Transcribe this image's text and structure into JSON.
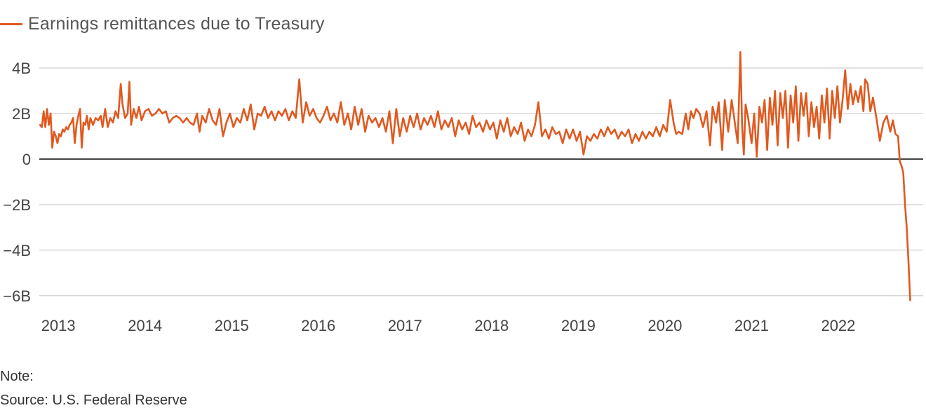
{
  "colors": {
    "series": "#e0591f",
    "grid": "#cfcfcf",
    "zero": "#111111"
  },
  "legend": {
    "label": "Earnings remittances due to Treasury"
  },
  "footer": {
    "note": "Note:",
    "source": "Source: U.S. Federal Reserve"
  },
  "chart_data": {
    "type": "line",
    "title": "",
    "xlabel": "",
    "ylabel": "",
    "ylim": [
      -6.5,
      4.8
    ],
    "xlim": [
      2012.78,
      2022.98
    ],
    "grid": true,
    "legend_position": "top-left",
    "yticks": [
      {
        "value": 4,
        "label": "4B"
      },
      {
        "value": 2,
        "label": "2B"
      },
      {
        "value": 0,
        "label": "0"
      },
      {
        "value": -2,
        "label": "−2B"
      },
      {
        "value": -4,
        "label": "−4B"
      },
      {
        "value": -6,
        "label": "−6B"
      }
    ],
    "xticks": [
      {
        "value": 2013,
        "label": "2013"
      },
      {
        "value": 2014,
        "label": "2014"
      },
      {
        "value": 2015,
        "label": "2015"
      },
      {
        "value": 2016,
        "label": "2016"
      },
      {
        "value": 2017,
        "label": "2017"
      },
      {
        "value": 2018,
        "label": "2018"
      },
      {
        "value": 2019,
        "label": "2019"
      },
      {
        "value": 2020,
        "label": "2020"
      },
      {
        "value": 2021,
        "label": "2021"
      },
      {
        "value": 2022,
        "label": "2022"
      }
    ],
    "series": [
      {
        "name": "Earnings remittances due to Treasury",
        "points": [
          [
            2012.79,
            1.5
          ],
          [
            2012.81,
            1.4
          ],
          [
            2012.83,
            2.1
          ],
          [
            2012.85,
            1.4
          ],
          [
            2012.87,
            2.2
          ],
          [
            2012.89,
            1.5
          ],
          [
            2012.91,
            2.0
          ],
          [
            2012.93,
            0.5
          ],
          [
            2012.95,
            1.2
          ],
          [
            2012.97,
            1.0
          ],
          [
            2012.99,
            0.7
          ],
          [
            2013.01,
            1.1
          ],
          [
            2013.03,
            1.0
          ],
          [
            2013.05,
            1.3
          ],
          [
            2013.07,
            1.2
          ],
          [
            2013.09,
            1.4
          ],
          [
            2013.11,
            1.3
          ],
          [
            2013.13,
            1.5
          ],
          [
            2013.15,
            1.6
          ],
          [
            2013.17,
            1.8
          ],
          [
            2013.19,
            0.7
          ],
          [
            2013.21,
            1.5
          ],
          [
            2013.23,
            1.9
          ],
          [
            2013.25,
            2.2
          ],
          [
            2013.27,
            0.5
          ],
          [
            2013.29,
            1.6
          ],
          [
            2013.31,
            1.5
          ],
          [
            2013.33,
            1.9
          ],
          [
            2013.35,
            1.3
          ],
          [
            2013.37,
            1.8
          ],
          [
            2013.4,
            1.5
          ],
          [
            2013.43,
            1.8
          ],
          [
            2013.46,
            1.7
          ],
          [
            2013.49,
            1.9
          ],
          [
            2013.51,
            1.4
          ],
          [
            2013.54,
            2.2
          ],
          [
            2013.57,
            1.4
          ],
          [
            2013.6,
            1.8
          ],
          [
            2013.63,
            1.6
          ],
          [
            2013.66,
            2.1
          ],
          [
            2013.69,
            1.8
          ],
          [
            2013.72,
            3.3
          ],
          [
            2013.74,
            2.4
          ],
          [
            2013.77,
            1.8
          ],
          [
            2013.8,
            2.0
          ],
          [
            2013.82,
            3.4
          ],
          [
            2013.84,
            1.5
          ],
          [
            2013.87,
            2.2
          ],
          [
            2013.9,
            1.8
          ],
          [
            2013.93,
            2.3
          ],
          [
            2013.96,
            1.7
          ],
          [
            2014.0,
            2.1
          ],
          [
            2014.04,
            2.2
          ],
          [
            2014.08,
            1.9
          ],
          [
            2014.12,
            2.0
          ],
          [
            2014.16,
            2.2
          ],
          [
            2014.2,
            2.0
          ],
          [
            2014.24,
            2.1
          ],
          [
            2014.28,
            1.6
          ],
          [
            2014.32,
            1.8
          ],
          [
            2014.36,
            1.9
          ],
          [
            2014.4,
            1.8
          ],
          [
            2014.44,
            1.6
          ],
          [
            2014.48,
            1.8
          ],
          [
            2014.52,
            1.6
          ],
          [
            2014.56,
            1.5
          ],
          [
            2014.6,
            2.0
          ],
          [
            2014.63,
            1.2
          ],
          [
            2014.66,
            1.9
          ],
          [
            2014.7,
            1.6
          ],
          [
            2014.74,
            2.2
          ],
          [
            2014.78,
            1.7
          ],
          [
            2014.82,
            1.5
          ],
          [
            2014.86,
            2.2
          ],
          [
            2014.9,
            1.0
          ],
          [
            2014.94,
            1.6
          ],
          [
            2014.98,
            2.0
          ],
          [
            2015.02,
            1.4
          ],
          [
            2015.06,
            1.8
          ],
          [
            2015.1,
            1.6
          ],
          [
            2015.14,
            2.2
          ],
          [
            2015.18,
            1.7
          ],
          [
            2015.22,
            2.4
          ],
          [
            2015.26,
            1.3
          ],
          [
            2015.3,
            2.0
          ],
          [
            2015.34,
            1.9
          ],
          [
            2015.38,
            2.3
          ],
          [
            2015.42,
            1.8
          ],
          [
            2015.46,
            2.1
          ],
          [
            2015.5,
            1.7
          ],
          [
            2015.54,
            2.1
          ],
          [
            2015.58,
            1.9
          ],
          [
            2015.62,
            2.2
          ],
          [
            2015.66,
            1.7
          ],
          [
            2015.7,
            2.1
          ],
          [
            2015.74,
            1.8
          ],
          [
            2015.78,
            3.5
          ],
          [
            2015.82,
            1.6
          ],
          [
            2015.86,
            2.5
          ],
          [
            2015.9,
            1.9
          ],
          [
            2015.94,
            2.2
          ],
          [
            2015.98,
            1.8
          ],
          [
            2016.02,
            1.6
          ],
          [
            2016.06,
            1.9
          ],
          [
            2016.1,
            2.3
          ],
          [
            2016.14,
            1.7
          ],
          [
            2016.18,
            2.0
          ],
          [
            2016.22,
            1.6
          ],
          [
            2016.26,
            2.5
          ],
          [
            2016.3,
            1.5
          ],
          [
            2016.34,
            2.0
          ],
          [
            2016.38,
            1.3
          ],
          [
            2016.42,
            2.3
          ],
          [
            2016.46,
            1.5
          ],
          [
            2016.5,
            2.2
          ],
          [
            2016.54,
            1.2
          ],
          [
            2016.58,
            1.9
          ],
          [
            2016.62,
            1.6
          ],
          [
            2016.66,
            1.8
          ],
          [
            2016.7,
            1.4
          ],
          [
            2016.74,
            1.8
          ],
          [
            2016.78,
            1.2
          ],
          [
            2016.82,
            2.1
          ],
          [
            2016.86,
            0.7
          ],
          [
            2016.9,
            2.2
          ],
          [
            2016.94,
            1.0
          ],
          [
            2016.98,
            1.8
          ],
          [
            2017.02,
            1.2
          ],
          [
            2017.06,
            1.9
          ],
          [
            2017.1,
            1.4
          ],
          [
            2017.14,
            2.0
          ],
          [
            2017.18,
            1.3
          ],
          [
            2017.22,
            1.8
          ],
          [
            2017.26,
            1.5
          ],
          [
            2017.3,
            1.9
          ],
          [
            2017.34,
            1.4
          ],
          [
            2017.38,
            2.1
          ],
          [
            2017.42,
            1.3
          ],
          [
            2017.46,
            1.7
          ],
          [
            2017.5,
            1.4
          ],
          [
            2017.54,
            1.8
          ],
          [
            2017.58,
            1.0
          ],
          [
            2017.62,
            1.7
          ],
          [
            2017.66,
            1.3
          ],
          [
            2017.7,
            1.6
          ],
          [
            2017.74,
            1.1
          ],
          [
            2017.78,
            1.9
          ],
          [
            2017.82,
            1.4
          ],
          [
            2017.86,
            1.6
          ],
          [
            2017.9,
            1.2
          ],
          [
            2017.94,
            1.7
          ],
          [
            2017.98,
            1.3
          ],
          [
            2018.02,
            1.6
          ],
          [
            2018.06,
            0.9
          ],
          [
            2018.1,
            1.7
          ],
          [
            2018.14,
            1.2
          ],
          [
            2018.18,
            1.8
          ],
          [
            2018.22,
            1.0
          ],
          [
            2018.26,
            1.4
          ],
          [
            2018.3,
            1.1
          ],
          [
            2018.34,
            1.6
          ],
          [
            2018.38,
            0.8
          ],
          [
            2018.42,
            1.3
          ],
          [
            2018.46,
            1.0
          ],
          [
            2018.5,
            1.5
          ],
          [
            2018.54,
            2.5
          ],
          [
            2018.58,
            1.0
          ],
          [
            2018.62,
            1.3
          ],
          [
            2018.66,
            0.9
          ],
          [
            2018.7,
            1.4
          ],
          [
            2018.74,
            1.1
          ],
          [
            2018.78,
            1.2
          ],
          [
            2018.82,
            0.7
          ],
          [
            2018.86,
            1.3
          ],
          [
            2018.9,
            0.9
          ],
          [
            2018.94,
            1.3
          ],
          [
            2018.98,
            0.8
          ],
          [
            2019.02,
            1.2
          ],
          [
            2019.06,
            0.2
          ],
          [
            2019.1,
            1.0
          ],
          [
            2019.14,
            0.8
          ],
          [
            2019.18,
            1.1
          ],
          [
            2019.22,
            0.9
          ],
          [
            2019.26,
            1.3
          ],
          [
            2019.3,
            1.0
          ],
          [
            2019.34,
            1.4
          ],
          [
            2019.38,
            1.1
          ],
          [
            2019.42,
            1.3
          ],
          [
            2019.46,
            0.9
          ],
          [
            2019.5,
            1.2
          ],
          [
            2019.54,
            1.0
          ],
          [
            2019.58,
            1.3
          ],
          [
            2019.62,
            0.7
          ],
          [
            2019.66,
            1.1
          ],
          [
            2019.7,
            0.8
          ],
          [
            2019.74,
            1.2
          ],
          [
            2019.78,
            0.9
          ],
          [
            2019.82,
            1.2
          ],
          [
            2019.86,
            1.0
          ],
          [
            2019.9,
            1.4
          ],
          [
            2019.94,
            1.0
          ],
          [
            2019.98,
            1.5
          ],
          [
            2020.02,
            1.2
          ],
          [
            2020.06,
            2.6
          ],
          [
            2020.1,
            1.6
          ],
          [
            2020.13,
            1.1
          ],
          [
            2020.16,
            1.2
          ],
          [
            2020.2,
            1.1
          ],
          [
            2020.24,
            2.0
          ],
          [
            2020.27,
            1.3
          ],
          [
            2020.3,
            2.1
          ],
          [
            2020.33,
            1.8
          ],
          [
            2020.36,
            2.2
          ],
          [
            2020.4,
            2.0
          ],
          [
            2020.44,
            1.4
          ],
          [
            2020.48,
            2.1
          ],
          [
            2020.52,
            0.6
          ],
          [
            2020.55,
            2.3
          ],
          [
            2020.59,
            1.6
          ],
          [
            2020.62,
            2.5
          ],
          [
            2020.66,
            0.4
          ],
          [
            2020.69,
            2.6
          ],
          [
            2020.73,
            1.2
          ],
          [
            2020.77,
            2.6
          ],
          [
            2020.81,
            1.5
          ],
          [
            2020.84,
            0.7
          ],
          [
            2020.87,
            4.7
          ],
          [
            2020.89,
            1.5
          ],
          [
            2020.91,
            0.2
          ],
          [
            2020.93,
            2.4
          ],
          [
            2020.96,
            1.8
          ],
          [
            2021.0,
            0.7
          ],
          [
            2021.03,
            2.0
          ],
          [
            2021.06,
            0.1
          ],
          [
            2021.09,
            2.3
          ],
          [
            2021.12,
            1.6
          ],
          [
            2021.15,
            2.6
          ],
          [
            2021.18,
            0.4
          ],
          [
            2021.21,
            2.7
          ],
          [
            2021.24,
            1.5
          ],
          [
            2021.27,
            3.0
          ],
          [
            2021.3,
            0.6
          ],
          [
            2021.33,
            2.9
          ],
          [
            2021.36,
            1.8
          ],
          [
            2021.39,
            3.0
          ],
          [
            2021.42,
            0.5
          ],
          [
            2021.45,
            2.8
          ],
          [
            2021.48,
            1.6
          ],
          [
            2021.51,
            3.2
          ],
          [
            2021.54,
            0.8
          ],
          [
            2021.57,
            2.9
          ],
          [
            2021.6,
            1.9
          ],
          [
            2021.63,
            2.9
          ],
          [
            2021.66,
            1.0
          ],
          [
            2021.69,
            2.5
          ],
          [
            2021.72,
            1.4
          ],
          [
            2021.75,
            2.3
          ],
          [
            2021.78,
            0.9
          ],
          [
            2021.81,
            2.8
          ],
          [
            2021.84,
            1.6
          ],
          [
            2021.87,
            3.1
          ],
          [
            2021.9,
            0.9
          ],
          [
            2021.93,
            3.0
          ],
          [
            2021.96,
            1.8
          ],
          [
            2021.99,
            3.2
          ],
          [
            2022.02,
            1.6
          ],
          [
            2022.05,
            2.6
          ],
          [
            2022.08,
            3.9
          ],
          [
            2022.11,
            2.2
          ],
          [
            2022.14,
            3.3
          ],
          [
            2022.17,
            2.4
          ],
          [
            2022.2,
            3.0
          ],
          [
            2022.23,
            2.5
          ],
          [
            2022.26,
            3.2
          ],
          [
            2022.29,
            2.1
          ],
          [
            2022.31,
            3.5
          ],
          [
            2022.34,
            3.3
          ],
          [
            2022.37,
            2.1
          ],
          [
            2022.4,
            2.7
          ],
          [
            2022.44,
            1.8
          ],
          [
            2022.48,
            0.8
          ],
          [
            2022.52,
            1.6
          ],
          [
            2022.56,
            1.9
          ],
          [
            2022.6,
            1.2
          ],
          [
            2022.63,
            1.7
          ],
          [
            2022.66,
            1.1
          ],
          [
            2022.69,
            1.0
          ],
          [
            2022.71,
            -0.1
          ],
          [
            2022.73,
            -0.3
          ],
          [
            2022.75,
            -0.6
          ],
          [
            2022.77,
            -2.0
          ],
          [
            2022.79,
            -3.0
          ],
          [
            2022.81,
            -4.5
          ],
          [
            2022.83,
            -6.2
          ]
        ]
      }
    ]
  }
}
